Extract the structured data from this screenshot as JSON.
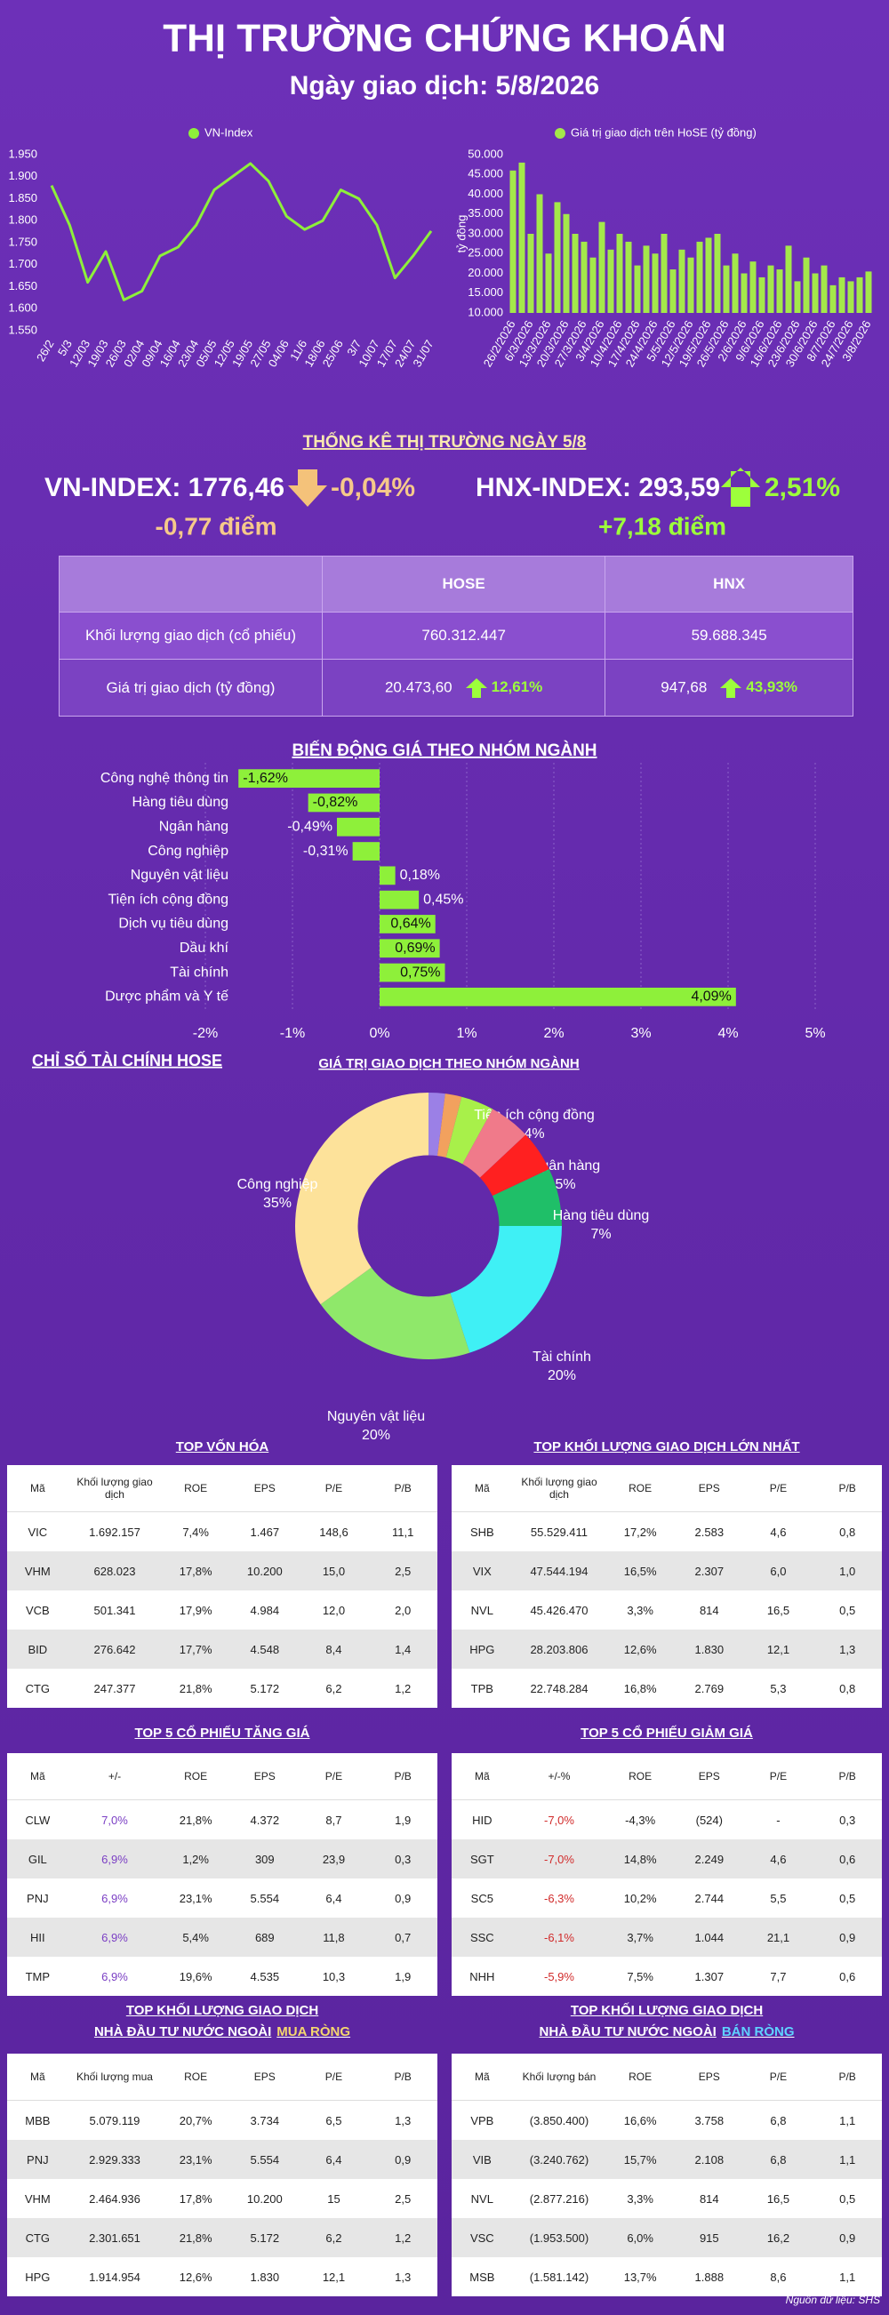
{
  "header": {
    "title": "THỊ TRƯỜNG CHỨNG KHOÁN",
    "subtitle": "Ngày giao dịch: 5/8/2026"
  },
  "chart_data": [
    {
      "type": "line",
      "categories": [
        "26/2",
        "5/3",
        "12/03",
        "19/03",
        "26/03",
        "02/04",
        "09/04",
        "16/04",
        "23/04",
        "05/05",
        "12/05",
        "19/05",
        "27/05",
        "04/06",
        "11/6",
        "18/06",
        "25/06",
        "3/7",
        "10/07",
        "17/07",
        "24/07",
        "31/07"
      ],
      "series": [
        {
          "name": "VN-Index",
          "color": "#8ef03a",
          "values": [
            1880,
            1790,
            1660,
            1730,
            1620,
            1640,
            1720,
            1740,
            1790,
            1870,
            1900,
            1930,
            1890,
            1810,
            1780,
            1800,
            1870,
            1850,
            1790,
            1670,
            1720,
            1776.46
          ]
        }
      ],
      "ylim": [
        1550,
        1950
      ],
      "yticks": [
        {
          "value": 1550,
          "label": "1.550"
        },
        {
          "value": 1600,
          "label": "1.600"
        },
        {
          "value": 1650,
          "label": "1.650"
        },
        {
          "value": 1700,
          "label": "1.700"
        },
        {
          "value": 1750,
          "label": "1.750"
        },
        {
          "value": 1800,
          "label": "1.800"
        },
        {
          "value": 1850,
          "label": "1.850"
        },
        {
          "value": 1900,
          "label": "1.900"
        },
        {
          "value": 1950,
          "label": "1.950"
        }
      ]
    },
    {
      "type": "bar",
      "y_label": "tỷ đồng",
      "categories": [
        "26/2/2026",
        null,
        "6/3/2026",
        null,
        "13/3/2026",
        null,
        "20/3/2026",
        null,
        "27/3/2026",
        null,
        "3/4/2026",
        null,
        "10/4/2026",
        null,
        "17/4/2026",
        null,
        "24/4/2026",
        null,
        "5/5/2026",
        null,
        "12/5/2026",
        null,
        "19/5/2026",
        null,
        "26/5/2026",
        null,
        "2/6/2026",
        null,
        "9/6/2026",
        null,
        "16/6/2026",
        null,
        "23/6/2026",
        null,
        "30/6/2026",
        null,
        "8/7/2026",
        null,
        "24/7/2026",
        null,
        "3/8/2026"
      ],
      "series": [
        {
          "name": "Giá trị giao dịch trên HoSE (tỷ đồng)",
          "color": "#a4e84a",
          "values": [
            46000,
            48000,
            30000,
            40000,
            25000,
            38000,
            35000,
            30000,
            28000,
            24000,
            33000,
            26000,
            30000,
            28000,
            22000,
            27000,
            25000,
            30000,
            21000,
            26000,
            24000,
            28000,
            29000,
            30000,
            22000,
            25000,
            20000,
            23000,
            19000,
            22000,
            21000,
            27000,
            18000,
            24000,
            20000,
            22000,
            17000,
            19000,
            18000,
            19000,
            20473.6
          ]
        }
      ],
      "ylim": [
        10000,
        50000
      ],
      "yticks": [
        {
          "value": 10000,
          "label": "10.000"
        },
        {
          "value": 15000,
          "label": "15.000"
        },
        {
          "value": 20000,
          "label": "20.000"
        },
        {
          "value": 25000,
          "label": "25.000"
        },
        {
          "value": 30000,
          "label": "30.000"
        },
        {
          "value": 35000,
          "label": "35.000"
        },
        {
          "value": 40000,
          "label": "40.000"
        },
        {
          "value": 45000,
          "label": "45.000"
        },
        {
          "value": 50000,
          "label": "50.000"
        }
      ]
    },
    {
      "type": "hbar",
      "title": "BIẾN ĐỘNG GIÁ THEO NHÓM NGÀNH",
      "categories": [
        "Công nghệ thông tin",
        "Hàng tiêu dùng",
        "Ngân hàng",
        "Công nghiệp",
        "Nguyên vật liệu",
        "Tiện ích cộng đồng",
        "Dịch vụ tiêu dùng",
        "Dầu khí",
        "Tài chính",
        "Dược phẩm và Y tế"
      ],
      "values": [
        -1.62,
        -0.82,
        -0.49,
        -0.31,
        0.18,
        0.45,
        0.64,
        0.69,
        0.75,
        4.09
      ],
      "value_labels": [
        "-1,62%",
        "-0,82%",
        "-0,49%",
        "-0,31%",
        "0,18%",
        "0,45%",
        "0,64%",
        "0,69%",
        "0,75%",
        "4,09%"
      ],
      "color": "#8ef03a",
      "xlim": [
        -2,
        5
      ],
      "xticks": [
        {
          "value": -2,
          "label": "-2%"
        },
        {
          "value": -1,
          "label": "-1%"
        },
        {
          "value": 0,
          "label": "0%"
        },
        {
          "value": 1,
          "label": "1%"
        },
        {
          "value": 2,
          "label": "2%"
        },
        {
          "value": 3,
          "label": "3%"
        },
        {
          "value": 4,
          "label": "4%"
        },
        {
          "value": 5,
          "label": "5%"
        }
      ],
      "grid": true
    },
    {
      "type": "pie",
      "title": "GIÁ TRỊ GIAO DỊCH THEO NHÓM NGÀNH",
      "donut": true,
      "categories": [
        null,
        null,
        "Tiện ích cộng đồng",
        "Ngân hàng",
        null,
        "Hàng tiêu dùng",
        "Tài chính",
        "Nguyên vật liệu",
        "Công nghiệp"
      ],
      "values": [
        2,
        2,
        4,
        5,
        5,
        7,
        20,
        20,
        35
      ],
      "value_labels": [
        null,
        null,
        "4%",
        "5%",
        null,
        "7%",
        "20%",
        "20%",
        "35%"
      ],
      "colors": [
        "#9b80e6",
        "#f2a15e",
        "#a8f04a",
        "#f07a8a",
        "#ff2020",
        "#1fbf68",
        "#3ff0f5",
        "#8fe86a",
        "#fde29a"
      ]
    }
  ],
  "market_stats": {
    "title": "THỐNG KÊ THỊ TRƯỜNG NGÀY 5/8",
    "vn_index": {
      "label": "VN-INDEX: 1776,46",
      "change": "-0,04%",
      "points": "-0,77 điểm"
    },
    "hnx_index": {
      "label": "HNX-INDEX: 293,59",
      "change": "2,51%",
      "points": "+7,18 điểm"
    }
  },
  "market_table": {
    "columns": [
      "HOSE",
      "HNX"
    ],
    "rows": [
      {
        "label": "Khối lượng giao dịch (cổ phiếu)",
        "cells": [
          {
            "value": "760.312.447"
          },
          {
            "value": "59.688.345"
          }
        ]
      },
      {
        "label": "Giá trị giao dịch (tỷ đồng)",
        "cells": [
          {
            "value": "20.473,60",
            "change": "12,61%"
          },
          {
            "value": "947,68",
            "change": "43,93%"
          }
        ]
      }
    ]
  },
  "financial_section": {
    "title": "CHỈ SỐ TÀI CHÍNH HOSE"
  },
  "tables": [
    {
      "title": [
        "TOP VỐN HÓA"
      ],
      "headers": [
        "Mã",
        "Khối lượng giao dịch",
        "ROE",
        "EPS",
        "P/E",
        "P/B"
      ],
      "rows": [
        [
          "VIC",
          "1.692.157",
          "7,4%",
          "1.467",
          "148,6",
          "11,1"
        ],
        [
          "VHM",
          "628.023",
          "17,8%",
          "10.200",
          "15,0",
          "2,5"
        ],
        [
          "VCB",
          "501.341",
          "17,9%",
          "4.984",
          "12,0",
          "2,0"
        ],
        [
          "BID",
          "276.642",
          "17,7%",
          "4.548",
          "8,4",
          "1,4"
        ],
        [
          "CTG",
          "247.377",
          "21,8%",
          "5.172",
          "6,2",
          "1,2"
        ]
      ]
    },
    {
      "title": [
        "TOP KHỐI LƯỢNG GIAO DỊCH LỚN NHẤT"
      ],
      "headers": [
        "Mã",
        "Khối lượng giao dịch",
        "ROE",
        "EPS",
        "P/E",
        "P/B"
      ],
      "rows": [
        [
          "SHB",
          "55.529.411",
          "17,2%",
          "2.583",
          "4,6",
          "0,8"
        ],
        [
          "VIX",
          "47.544.194",
          "16,5%",
          "2.307",
          "6,0",
          "1,0"
        ],
        [
          "NVL",
          "45.426.470",
          "3,3%",
          "814",
          "16,5",
          "0,5"
        ],
        [
          "HPG",
          "28.203.806",
          "12,6%",
          "1.830",
          "12,1",
          "1,3"
        ],
        [
          "TPB",
          "22.748.284",
          "16,8%",
          "2.769",
          "5,3",
          "0,8"
        ]
      ]
    },
    {
      "title": [
        "TOP 5 CỔ PHIẾU TĂNG GIÁ"
      ],
      "headers": [
        "Mã",
        "+/-",
        "ROE",
        "EPS",
        "P/E",
        "P/B"
      ],
      "highlight_column": 1,
      "highlight_color": "#7b3fc4",
      "rows": [
        [
          "CLW",
          "7,0%",
          "21,8%",
          "4.372",
          "8,7",
          "1,9"
        ],
        [
          "GIL",
          "6,9%",
          "1,2%",
          "309",
          "23,9",
          "0,3"
        ],
        [
          "PNJ",
          "6,9%",
          "23,1%",
          "5.554",
          "6,4",
          "0,9"
        ],
        [
          "HII",
          "6,9%",
          "5,4%",
          "689",
          "11,8",
          "0,7"
        ],
        [
          "TMP",
          "6,9%",
          "19,6%",
          "4.535",
          "10,3",
          "1,9"
        ]
      ]
    },
    {
      "title": [
        "TOP 5 CỔ PHIẾU GIẢM GIÁ"
      ],
      "headers": [
        "Mã",
        "+/-%",
        "ROE",
        "EPS",
        "P/E",
        "P/B"
      ],
      "highlight_column": 1,
      "highlight_color": "#d12b2b",
      "rows": [
        [
          "HID",
          "-7,0%",
          "-4,3%",
          "(524)",
          "-",
          "0,3"
        ],
        [
          "SGT",
          "-7,0%",
          "14,8%",
          "2.249",
          "4,6",
          "0,6"
        ],
        [
          "SC5",
          "-6,3%",
          "10,2%",
          "2.744",
          "5,5",
          "0,5"
        ],
        [
          "SSC",
          "-6,1%",
          "3,7%",
          "1.044",
          "21,1",
          "0,9"
        ],
        [
          "NHH",
          "-5,9%",
          "7,5%",
          "1.307",
          "7,7",
          "0,6"
        ]
      ]
    },
    {
      "title": [
        "TOP KHỐI LƯỢNG GIAO DỊCH",
        "NHÀ ĐẦU TƯ NƯỚC NGOÀI"
      ],
      "title_highlight": "MUA RÒNG",
      "title_highlight_color": "#f5d76e",
      "headers": [
        "Mã",
        "Khối lượng mua",
        "ROE",
        "EPS",
        "P/E",
        "P/B"
      ],
      "rows": [
        [
          "MBB",
          "5.079.119",
          "20,7%",
          "3.734",
          "6,5",
          "1,3"
        ],
        [
          "PNJ",
          "2.929.333",
          "23,1%",
          "5.554",
          "6,4",
          "0,9"
        ],
        [
          "VHM",
          "2.464.936",
          "17,8%",
          "10.200",
          "15",
          "2,5"
        ],
        [
          "CTG",
          "2.301.651",
          "21,8%",
          "5.172",
          "6,2",
          "1,2"
        ],
        [
          "HPG",
          "1.914.954",
          "12,6%",
          "1.830",
          "12,1",
          "1,3"
        ]
      ]
    },
    {
      "title": [
        "TOP KHỐI LƯỢNG GIAO DỊCH",
        "NHÀ ĐẦU TƯ NƯỚC NGOÀI"
      ],
      "title_highlight": "BÁN RÒNG",
      "title_highlight_color": "#5fd3ff",
      "headers": [
        "Mã",
        "Khối lượng bán",
        "ROE",
        "EPS",
        "P/E",
        "P/B"
      ],
      "rows": [
        [
          "VPB",
          "(3.850.400)",
          "16,6%",
          "3.758",
          "6,8",
          "1,1"
        ],
        [
          "VIB",
          "(3.240.762)",
          "15,7%",
          "2.108",
          "6,8",
          "1,1"
        ],
        [
          "NVL",
          "(2.877.216)",
          "3,3%",
          "814",
          "16,5",
          "0,5"
        ],
        [
          "VSC",
          "(1.953.500)",
          "6,0%",
          "915",
          "16,2",
          "0,9"
        ],
        [
          "MSB",
          "(1.581.142)",
          "13,7%",
          "1.888",
          "8,6",
          "1,1"
        ]
      ]
    }
  ],
  "source": "Nguồn dữ liệu: SHS"
}
